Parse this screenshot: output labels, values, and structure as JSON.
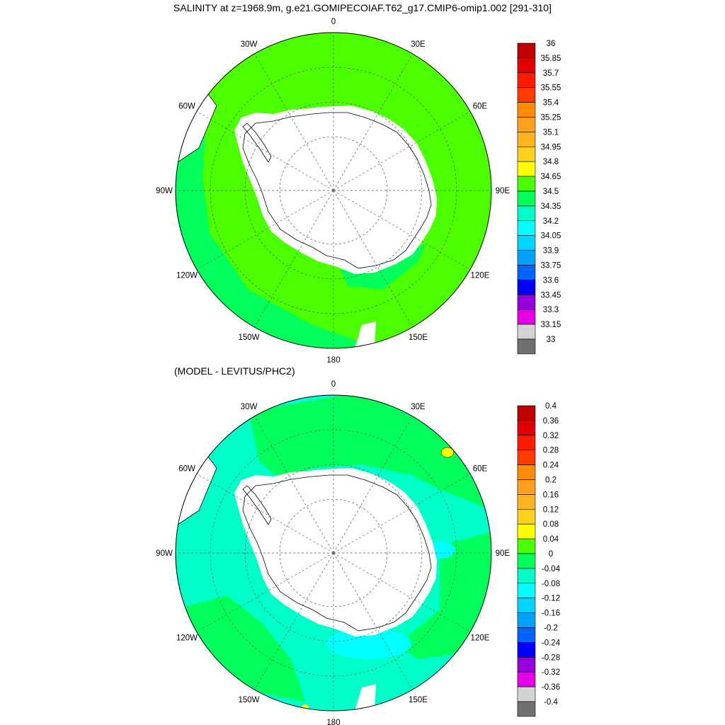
{
  "title": "SALINITY at z=1968.9m, g.e21.GOMIPECOIAF.T62_g17.CMIP6-omip1.002 [291-310]",
  "colors": {
    "land": "#ffffff",
    "coast": "#000000",
    "grid": "#555555"
  },
  "chart_data": [
    {
      "type": "heatmap",
      "title": "SALINITY at z=1968.9m, g.e21.GOMIPECOIAF.T62_g17.CMIP6-omip1.002 [291-310]",
      "projection": "south polar stereographic",
      "lon_labels": [
        "0",
        "30E",
        "60E",
        "90E",
        "120E",
        "150E",
        "180",
        "150W",
        "120W",
        "90W",
        "60W",
        "30W"
      ],
      "levels": [
        "36",
        "35.85",
        "35.7",
        "35.55",
        "35.4",
        "35.25",
        "35.1",
        "34.95",
        "34.8",
        "34.65",
        "34.5",
        "34.35",
        "34.2",
        "34.05",
        "33.9",
        "33.75",
        "33.6",
        "33.45",
        "33.3",
        "33.15",
        "33"
      ],
      "colorbar_colors": [
        "#c00000",
        "#e00000",
        "#ff1a00",
        "#ff3c00",
        "#ff8c00",
        "#ffa020",
        "#ffb41e",
        "#ffd01e",
        "#ffff00",
        "#4cff00",
        "#00ff5a",
        "#00ffc8",
        "#00ffff",
        "#00d4ff",
        "#00a0ff",
        "#0064ff",
        "#0000ff",
        "#9600dc",
        "#e600e6",
        "#d3d3d3",
        "#707070"
      ],
      "dominant_range": [
        34.65,
        34.8
      ],
      "dominant_color": "#4cff00",
      "secondary_range": [
        34.5,
        34.65
      ],
      "secondary_color": "#00ff5a"
    },
    {
      "type": "heatmap",
      "title": "(MODEL - LEVITUS/PHC2)",
      "projection": "south polar stereographic",
      "lon_labels": [
        "0",
        "30E",
        "60E",
        "90E",
        "120E",
        "150E",
        "180",
        "150W",
        "120W",
        "90W",
        "60W",
        "30W"
      ],
      "levels": [
        "0.4",
        "0.36",
        "0.32",
        "0.28",
        "0.24",
        "0.2",
        "0.16",
        "0.12",
        "0.08",
        "0.04",
        "0",
        "-0.04",
        "-0.08",
        "-0.12",
        "-0.16",
        "-0.2",
        "-0.24",
        "-0.28",
        "-0.32",
        "-0.36",
        "-0.4"
      ],
      "colorbar_colors": [
        "#c00000",
        "#e00000",
        "#ff1a00",
        "#ff3c00",
        "#ff8c00",
        "#ffa020",
        "#ffb41e",
        "#ffd01e",
        "#ffff00",
        "#4cff00",
        "#00ff5a",
        "#00ffc8",
        "#00ffff",
        "#00d4ff",
        "#00a0ff",
        "#0064ff",
        "#0000ff",
        "#9600dc",
        "#e600e6",
        "#d3d3d3",
        "#707070"
      ],
      "dominant_range": [
        -0.04,
        0
      ],
      "dominant_color": "#00ffc8",
      "secondary_range": [
        0,
        0.04
      ],
      "secondary_color": "#00ff5a",
      "negative_patch_range": [
        -0.08,
        -0.04
      ],
      "negative_patch_color": "#00ffff",
      "positive_patch_range": [
        0.08,
        0.12
      ],
      "positive_patch_color": "#ffff00"
    }
  ]
}
